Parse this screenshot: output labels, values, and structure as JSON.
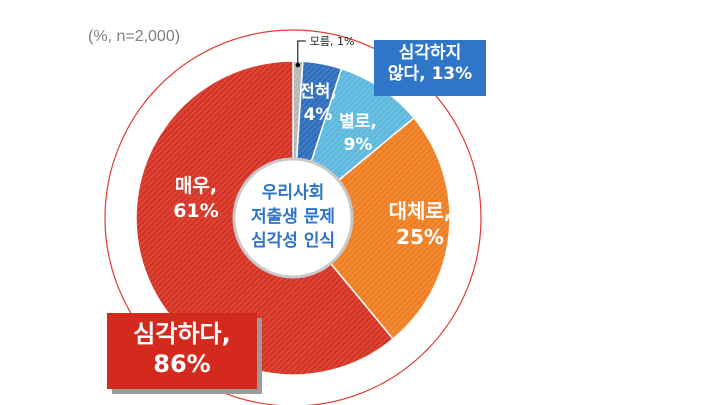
{
  "note": "(%, n=2,000)",
  "colors": {
    "very_serious": "#d63526",
    "somewhat_serious": "#f07f24",
    "not_much": "#5fb9df",
    "not_at_all": "#2f6fbe",
    "dont_know": "#b8b8b8",
    "outer_ring": "#e03a30",
    "center_text": "#2e73c4",
    "blue_box": "#2f76c9",
    "red_box": "#d42a1e"
  },
  "chart_data": {
    "type": "pie",
    "title": "",
    "center_label": [
      "우리사회",
      "저출생 문제",
      "심각성 인식"
    ],
    "slices": [
      {
        "label": [
          "모름, 1%"
        ],
        "value": 1,
        "color_key": "dont_know"
      },
      {
        "label": [
          "전혀,",
          "4%"
        ],
        "value": 4,
        "color_key": "not_at_all"
      },
      {
        "label": [
          "별로,",
          "9%"
        ],
        "value": 9,
        "color_key": "not_much"
      },
      {
        "label": [
          "대체로,",
          "25%"
        ],
        "value": 25,
        "color_key": "somewhat_serious"
      },
      {
        "label": [
          "매우,",
          "61%"
        ],
        "value": 61,
        "color_key": "very_serious"
      }
    ],
    "group_labels": {
      "not_serious": [
        "심각하지",
        "않다, 13%"
      ],
      "serious": [
        "심각하다,",
        "86%"
      ]
    }
  }
}
